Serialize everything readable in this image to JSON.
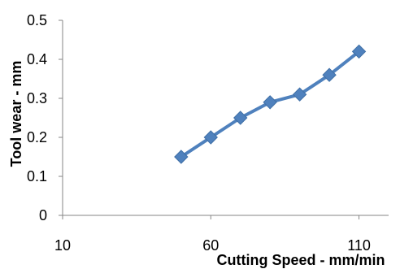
{
  "chart_data": {
    "type": "line",
    "xlabel": "Cutting Speed - mm/min",
    "ylabel": "Tool wear - mm",
    "xlim": [
      10,
      120
    ],
    "ylim": [
      0,
      0.5
    ],
    "x_ticks": [
      10,
      60,
      110
    ],
    "y_ticks": [
      0,
      0.1,
      0.2,
      0.3,
      0.4,
      0.5
    ],
    "grid": false,
    "legend": "none",
    "series": [
      {
        "color": "#4f81bd",
        "marker": "diamond",
        "x": [
          50,
          60,
          70,
          80,
          90,
          100,
          110
        ],
        "y": [
          0.15,
          0.2,
          0.25,
          0.29,
          0.31,
          0.36,
          0.42
        ]
      }
    ]
  }
}
